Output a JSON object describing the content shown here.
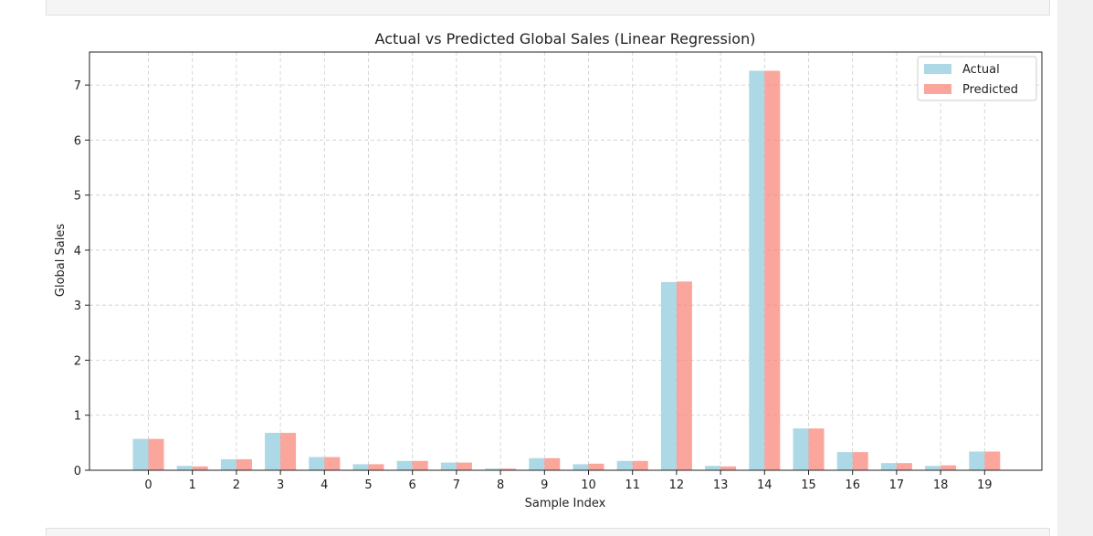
{
  "chart_data": {
    "type": "bar",
    "title": "Actual vs Predicted Global Sales (Linear Regression)",
    "xlabel": "Sample Index",
    "ylabel": "Global Sales",
    "categories": [
      "0",
      "1",
      "2",
      "3",
      "4",
      "5",
      "6",
      "7",
      "8",
      "9",
      "10",
      "11",
      "12",
      "13",
      "14",
      "15",
      "16",
      "17",
      "18",
      "19"
    ],
    "series": [
      {
        "name": "Actual",
        "color": "#add8e6",
        "values": [
          0.57,
          0.08,
          0.2,
          0.68,
          0.24,
          0.11,
          0.17,
          0.14,
          0.03,
          0.22,
          0.11,
          0.17,
          3.42,
          0.08,
          7.26,
          0.76,
          0.33,
          0.13,
          0.08,
          0.34
        ]
      },
      {
        "name": "Predicted",
        "color": "#fa8072",
        "values": [
          0.57,
          0.07,
          0.2,
          0.68,
          0.24,
          0.11,
          0.17,
          0.14,
          0.03,
          0.22,
          0.12,
          0.17,
          3.43,
          0.07,
          7.26,
          0.76,
          0.33,
          0.13,
          0.09,
          0.34
        ]
      }
    ],
    "ylim": [
      0,
      7.6
    ],
    "yticks": [
      0,
      1,
      2,
      3,
      4,
      5,
      6,
      7
    ],
    "grid": true,
    "legend_position": "top-right"
  }
}
